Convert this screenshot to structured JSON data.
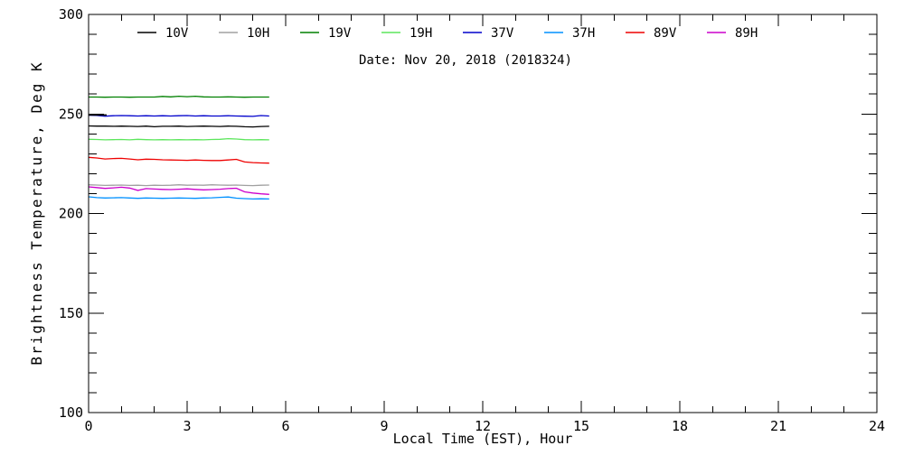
{
  "figure": {
    "background": "#ffffff",
    "frame_color": "#000000"
  },
  "chart_data": {
    "type": "line",
    "title": "",
    "annotation": "Date: Nov 20, 2018 (2018324)",
    "xlabel": "Local Time (EST), Hour",
    "ylabel": "Brightness Temperature, Deg K",
    "xlim": [
      0,
      24
    ],
    "ylim": [
      100,
      300
    ],
    "x_major_ticks": [
      0,
      3,
      6,
      9,
      12,
      15,
      18,
      21,
      24
    ],
    "x_minor_step": 1,
    "y_major_ticks": [
      100,
      150,
      200,
      250,
      300
    ],
    "y_minor_step": 10,
    "grid": false,
    "legend_position": "top",
    "x": [
      0,
      0.25,
      0.5,
      0.75,
      1,
      1.25,
      1.5,
      1.75,
      2,
      2.25,
      2.5,
      2.75,
      3,
      3.25,
      3.5,
      3.75,
      4,
      4.25,
      4.5,
      4.75,
      5,
      5.25,
      5.5
    ],
    "series": [
      {
        "name": "10V",
        "color": "#000000",
        "values": [
          244.0,
          243.9,
          243.9,
          243.8,
          243.9,
          243.8,
          243.7,
          243.9,
          243.6,
          243.8,
          243.8,
          243.9,
          243.7,
          243.8,
          243.9,
          243.8,
          243.7,
          243.9,
          243.8,
          243.6,
          243.5,
          243.7,
          243.8
        ]
      },
      {
        "name": "10H",
        "color": "#a0a0a0",
        "values": [
          214.4,
          214.3,
          214.1,
          214.2,
          214.3,
          214.1,
          214.2,
          214.0,
          214.2,
          214.1,
          214.2,
          214.4,
          214.2,
          214.3,
          214.2,
          214.4,
          214.3,
          214.2,
          214.3,
          214.1,
          214.0,
          214.2,
          214.3
        ]
      },
      {
        "name": "19V",
        "color": "#008000",
        "values": [
          258.5,
          258.5,
          258.4,
          258.5,
          258.5,
          258.4,
          258.5,
          258.5,
          258.5,
          258.8,
          258.6,
          258.9,
          258.7,
          258.9,
          258.6,
          258.5,
          258.5,
          258.6,
          258.5,
          258.4,
          258.5,
          258.5,
          258.5
        ]
      },
      {
        "name": "19H",
        "color": "#5ce65c",
        "values": [
          237.3,
          237.2,
          237.0,
          237.1,
          237.2,
          237.0,
          237.3,
          237.1,
          237.0,
          237.1,
          237.0,
          237.1,
          237.0,
          237.1,
          237.0,
          237.2,
          237.3,
          237.6,
          237.4,
          237.1,
          237.0,
          237.1,
          237.0
        ]
      },
      {
        "name": "37V",
        "color": "#0000cc",
        "values": [
          249.4,
          249.3,
          248.9,
          249.1,
          249.2,
          249.1,
          249.0,
          249.1,
          249.0,
          249.1,
          249.0,
          249.1,
          249.2,
          249.0,
          249.1,
          249.0,
          249.0,
          249.1,
          249.0,
          248.9,
          248.8,
          249.2,
          249.0
        ]
      },
      {
        "name": "37H",
        "color": "#0090ff",
        "values": [
          208.4,
          208.0,
          207.8,
          207.9,
          208.0,
          207.8,
          207.6,
          207.8,
          207.7,
          207.6,
          207.7,
          207.8,
          207.7,
          207.6,
          207.8,
          207.9,
          208.1,
          208.3,
          207.7,
          207.5,
          207.3,
          207.4,
          207.3
        ]
      },
      {
        "name": "89V",
        "color": "#ee0000",
        "values": [
          228.2,
          227.9,
          227.4,
          227.6,
          227.7,
          227.4,
          227.0,
          227.3,
          227.2,
          227.0,
          226.9,
          226.8,
          226.7,
          226.9,
          226.7,
          226.6,
          226.6,
          226.9,
          227.2,
          225.9,
          225.6,
          225.4,
          225.3
        ]
      },
      {
        "name": "89H",
        "color": "#cc00cc",
        "values": [
          213.4,
          213.0,
          212.6,
          212.9,
          213.2,
          212.8,
          211.6,
          212.5,
          212.3,
          212.1,
          212.0,
          212.2,
          212.4,
          212.1,
          211.9,
          212.0,
          212.2,
          212.5,
          212.7,
          210.9,
          210.3,
          209.9,
          209.6
        ]
      }
    ],
    "extra_segments": [
      {
        "name": "overlap-start-black",
        "color": "#000000",
        "x": [
          0,
          0.55
        ],
        "values": [
          249.5,
          249.5
        ]
      }
    ]
  }
}
